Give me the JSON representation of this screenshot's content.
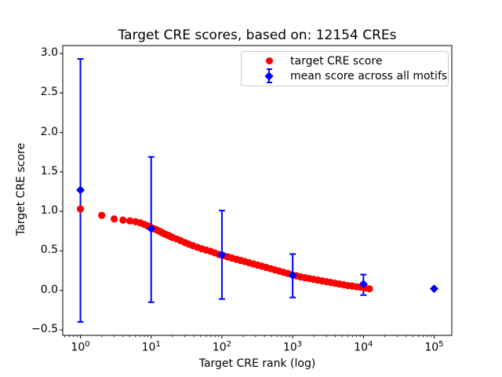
{
  "chart_data": {
    "type": "scatter",
    "title": "Target CRE scores, based on: 12154 CREs",
    "xlabel": "Target CRE rank (log)",
    "ylabel": "Target CRE score",
    "cre_count": 12154,
    "x_scale": "log10",
    "xlim_log10": [
      -0.25,
      5.25
    ],
    "ylim": [
      -0.57,
      3.1
    ],
    "grid": false,
    "x_tick_exponents": [
      0,
      1,
      2,
      3,
      4,
      5
    ],
    "y_ticks": [
      {
        "value": -0.5,
        "label": "−0.5"
      },
      {
        "value": 0.0,
        "label": "0.0"
      },
      {
        "value": 0.5,
        "label": "0.5"
      },
      {
        "value": 1.0,
        "label": "1.0"
      },
      {
        "value": 1.5,
        "label": "1.5"
      },
      {
        "value": 2.0,
        "label": "2.0"
      },
      {
        "value": 2.5,
        "label": "2.5"
      },
      {
        "value": 3.0,
        "label": "3.0"
      }
    ],
    "colors": {
      "red": "#ff0000",
      "blue": "#0000ff",
      "axis": "#000000",
      "legend_border": "#cccccc"
    },
    "legend": {
      "position": "upper right"
    },
    "series": [
      {
        "name": "target CRE score",
        "type": "scatter",
        "marker": "circle",
        "color": "#ff0000",
        "points": [
          [
            1,
            1.03
          ],
          [
            2,
            0.95
          ],
          [
            3,
            0.905
          ],
          [
            4,
            0.89
          ],
          [
            5,
            0.88
          ],
          [
            6,
            0.87
          ],
          [
            7,
            0.855
          ],
          [
            8,
            0.835
          ],
          [
            9,
            0.815
          ],
          [
            10,
            0.795
          ],
          [
            11,
            0.78
          ],
          [
            12,
            0.765
          ],
          [
            13,
            0.75
          ],
          [
            14,
            0.735
          ],
          [
            15,
            0.72
          ],
          [
            16,
            0.71
          ],
          [
            17,
            0.7
          ],
          [
            18,
            0.69
          ],
          [
            19,
            0.68
          ],
          [
            20,
            0.67
          ],
          [
            23,
            0.65
          ],
          [
            26,
            0.63
          ],
          [
            30,
            0.605
          ],
          [
            34,
            0.585
          ],
          [
            39,
            0.565
          ],
          [
            45,
            0.545
          ],
          [
            52,
            0.525
          ],
          [
            60,
            0.51
          ],
          [
            69,
            0.495
          ],
          [
            79,
            0.475
          ],
          [
            91,
            0.455
          ],
          [
            105,
            0.44
          ],
          [
            120,
            0.425
          ],
          [
            138,
            0.41
          ],
          [
            159,
            0.395
          ],
          [
            183,
            0.38
          ],
          [
            210,
            0.365
          ],
          [
            242,
            0.35
          ],
          [
            278,
            0.335
          ],
          [
            320,
            0.32
          ],
          [
            368,
            0.305
          ],
          [
            423,
            0.29
          ],
          [
            487,
            0.275
          ],
          [
            560,
            0.26
          ],
          [
            644,
            0.245
          ],
          [
            741,
            0.23
          ],
          [
            852,
            0.215
          ],
          [
            980,
            0.2
          ],
          [
            1128,
            0.185
          ],
          [
            1297,
            0.17
          ],
          [
            1492,
            0.16
          ],
          [
            1717,
            0.15
          ],
          [
            1975,
            0.14
          ],
          [
            2272,
            0.13
          ],
          [
            2613,
            0.12
          ],
          [
            3005,
            0.11
          ],
          [
            3457,
            0.1
          ],
          [
            3977,
            0.09
          ],
          [
            4575,
            0.08
          ],
          [
            5263,
            0.07
          ],
          [
            6054,
            0.06
          ],
          [
            6964,
            0.055
          ],
          [
            8011,
            0.045
          ],
          [
            9215,
            0.04
          ],
          [
            10600,
            0.03
          ],
          [
            12154,
            0.02
          ]
        ]
      },
      {
        "name": "mean score across all motifs",
        "type": "errorbar",
        "marker": "diamond",
        "color": "#0000ff",
        "points": [
          {
            "x": 1,
            "mean": 1.27,
            "lo": -0.4,
            "hi": 2.93
          },
          {
            "x": 10,
            "mean": 0.78,
            "lo": -0.15,
            "hi": 1.69
          },
          {
            "x": 100,
            "mean": 0.45,
            "lo": -0.11,
            "hi": 1.01
          },
          {
            "x": 1000,
            "mean": 0.19,
            "lo": -0.09,
            "hi": 0.46
          },
          {
            "x": 10000,
            "mean": 0.08,
            "lo": -0.06,
            "hi": 0.2
          },
          {
            "x": 100000,
            "mean": 0.02,
            "lo": null,
            "hi": null
          }
        ]
      }
    ]
  }
}
